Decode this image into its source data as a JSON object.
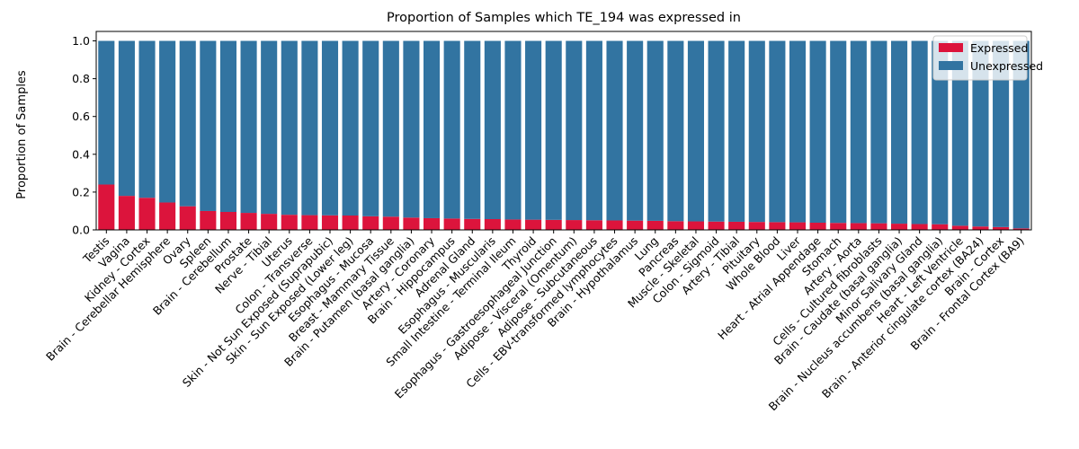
{
  "chart_data": {
    "type": "bar",
    "stacked": true,
    "title": "Proportion of Samples which TE_194 was expressed in",
    "xlabel": "",
    "ylabel": "Proportion of Samples",
    "ylim": [
      0,
      1.05
    ],
    "yticks": [
      "0.0",
      "0.2",
      "0.4",
      "0.6",
      "0.8",
      "1.0"
    ],
    "grid": false,
    "legend_position": "top-right",
    "categories": [
      "Testis",
      "Vagina",
      "Kidney - Cortex",
      "Brain - Cerebellar Hemisphere",
      "Ovary",
      "Spleen",
      "Brain - Cerebellum",
      "Prostate",
      "Nerve - Tibial",
      "Uterus",
      "Colon - Transverse",
      "Skin - Not Sun Exposed (Suprapubic)",
      "Skin - Sun Exposed (Lower leg)",
      "Esophagus - Mucosa",
      "Breast - Mammary Tissue",
      "Brain - Putamen (basal ganglia)",
      "Artery - Coronary",
      "Brain - Hippocampus",
      "Adrenal Gland",
      "Esophagus - Muscularis",
      "Small Intestine - Terminal Ileum",
      "Thyroid",
      "Esophagus - Gastroesophageal Junction",
      "Adipose - Visceral (Omentum)",
      "Adipose - Subcutaneous",
      "Cells - EBV-transformed lymphocytes",
      "Brain - Hypothalamus",
      "Lung",
      "Pancreas",
      "Muscle - Skeletal",
      "Colon - Sigmoid",
      "Artery - Tibial",
      "Pituitary",
      "Whole Blood",
      "Liver",
      "Heart - Atrial Appendage",
      "Stomach",
      "Artery - Aorta",
      "Cells - Cultured fibroblasts",
      "Brain - Caudate (basal ganglia)",
      "Minor Salivary Gland",
      "Brain - Nucleus accumbens (basal ganglia)",
      "Heart - Left Ventricle",
      "Brain - Anterior cingulate cortex (BA24)",
      "Brain - Cortex",
      "Brain - Frontal Cortex (BA9)"
    ],
    "series": [
      {
        "name": "Expressed",
        "color": "#dc143c",
        "values": [
          0.24,
          0.18,
          0.17,
          0.145,
          0.125,
          0.1,
          0.095,
          0.09,
          0.085,
          0.08,
          0.078,
          0.077,
          0.076,
          0.072,
          0.07,
          0.065,
          0.062,
          0.06,
          0.058,
          0.057,
          0.055,
          0.054,
          0.053,
          0.052,
          0.051,
          0.05,
          0.049,
          0.048,
          0.046,
          0.045,
          0.044,
          0.043,
          0.042,
          0.041,
          0.04,
          0.038,
          0.037,
          0.036,
          0.035,
          0.033,
          0.031,
          0.03,
          0.022,
          0.018,
          0.015,
          0.008
        ]
      },
      {
        "name": "Unexpressed",
        "color": "#3274a1",
        "values": [
          0.76,
          0.82,
          0.83,
          0.855,
          0.875,
          0.9,
          0.905,
          0.91,
          0.915,
          0.92,
          0.922,
          0.923,
          0.924,
          0.928,
          0.93,
          0.935,
          0.938,
          0.94,
          0.942,
          0.943,
          0.945,
          0.946,
          0.947,
          0.948,
          0.949,
          0.95,
          0.951,
          0.952,
          0.954,
          0.955,
          0.956,
          0.957,
          0.958,
          0.959,
          0.96,
          0.962,
          0.963,
          0.964,
          0.965,
          0.967,
          0.969,
          0.97,
          0.978,
          0.982,
          0.985,
          0.992
        ]
      }
    ]
  }
}
